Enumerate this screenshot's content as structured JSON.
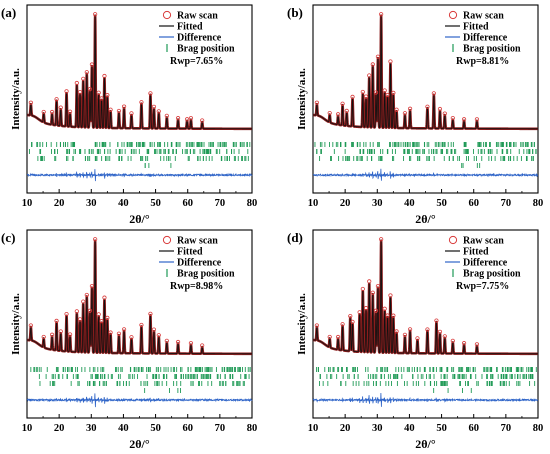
{
  "chart_data": [
    {
      "type": "line",
      "panel": "(a)",
      "xlabel": "2θ/°",
      "ylabel": "Intensity/a.u.",
      "xlim": [
        10,
        80
      ],
      "xticks": [
        "10",
        "20",
        "30",
        "40",
        "50",
        "60",
        "70",
        "80"
      ],
      "legend": {
        "placement": "top-right",
        "entries": [
          "Raw scan",
          "Fitted",
          "Difference",
          "Brag position"
        ],
        "rwp": "Rwp=7.65%"
      },
      "peaks": [
        {
          "x": 11.2,
          "h": 0.1
        },
        {
          "x": 15.2,
          "h": 0.08
        },
        {
          "x": 17.8,
          "h": 0.1
        },
        {
          "x": 19.2,
          "h": 0.22
        },
        {
          "x": 20.5,
          "h": 0.15
        },
        {
          "x": 22.3,
          "h": 0.3
        },
        {
          "x": 23.4,
          "h": 0.12
        },
        {
          "x": 25.5,
          "h": 0.38
        },
        {
          "x": 26.5,
          "h": 0.3
        },
        {
          "x": 27.5,
          "h": 0.42
        },
        {
          "x": 28.6,
          "h": 0.48
        },
        {
          "x": 29.6,
          "h": 0.33
        },
        {
          "x": 30.2,
          "h": 0.55
        },
        {
          "x": 31.2,
          "h": 1.0
        },
        {
          "x": 32.3,
          "h": 0.3
        },
        {
          "x": 33.2,
          "h": 0.25
        },
        {
          "x": 34.1,
          "h": 0.45
        },
        {
          "x": 35.0,
          "h": 0.28
        },
        {
          "x": 36.0,
          "h": 0.15
        },
        {
          "x": 38.6,
          "h": 0.14
        },
        {
          "x": 40.2,
          "h": 0.18
        },
        {
          "x": 42.5,
          "h": 0.12
        },
        {
          "x": 45.6,
          "h": 0.22
        },
        {
          "x": 48.4,
          "h": 0.3
        },
        {
          "x": 49.5,
          "h": 0.18
        },
        {
          "x": 51.0,
          "h": 0.14
        },
        {
          "x": 53.5,
          "h": 0.1
        },
        {
          "x": 57.0,
          "h": 0.08
        },
        {
          "x": 59.8,
          "h": 0.07
        },
        {
          "x": 61.0,
          "h": 0.08
        },
        {
          "x": 64.5,
          "h": 0.06
        }
      ]
    },
    {
      "type": "line",
      "panel": "(b)",
      "xlabel": "2θ/°",
      "ylabel": "Intensity/a.u.",
      "xlim": [
        10,
        80
      ],
      "xticks": [
        "10",
        "20",
        "30",
        "40",
        "50",
        "60",
        "70",
        "80"
      ],
      "legend": {
        "placement": "top-right",
        "entries": [
          "Raw scan",
          "Fitted",
          "Difference",
          "Brag position"
        ],
        "rwp": "Rwp=8.81%"
      },
      "peaks": [
        {
          "x": 11.2,
          "h": 0.1
        },
        {
          "x": 15.2,
          "h": 0.07
        },
        {
          "x": 17.8,
          "h": 0.08
        },
        {
          "x": 19.2,
          "h": 0.18
        },
        {
          "x": 20.5,
          "h": 0.12
        },
        {
          "x": 22.3,
          "h": 0.25
        },
        {
          "x": 25.5,
          "h": 0.3
        },
        {
          "x": 26.5,
          "h": 0.26
        },
        {
          "x": 27.5,
          "h": 0.45
        },
        {
          "x": 28.6,
          "h": 0.55
        },
        {
          "x": 29.6,
          "h": 0.3
        },
        {
          "x": 30.2,
          "h": 0.62
        },
        {
          "x": 31.2,
          "h": 1.0
        },
        {
          "x": 32.3,
          "h": 0.32
        },
        {
          "x": 33.2,
          "h": 0.28
        },
        {
          "x": 34.1,
          "h": 0.58
        },
        {
          "x": 35.0,
          "h": 0.3
        },
        {
          "x": 36.0,
          "h": 0.15
        },
        {
          "x": 38.6,
          "h": 0.12
        },
        {
          "x": 40.2,
          "h": 0.16
        },
        {
          "x": 45.6,
          "h": 0.18
        },
        {
          "x": 47.6,
          "h": 0.3
        },
        {
          "x": 49.5,
          "h": 0.16
        },
        {
          "x": 51.0,
          "h": 0.12
        },
        {
          "x": 53.5,
          "h": 0.08
        },
        {
          "x": 57.0,
          "h": 0.07
        },
        {
          "x": 61.0,
          "h": 0.07
        }
      ]
    },
    {
      "type": "line",
      "panel": "(c)",
      "xlabel": "2θ/°",
      "ylabel": "Intensity/a.u.",
      "xlim": [
        10,
        80
      ],
      "xticks": [
        "10",
        "20",
        "30",
        "40",
        "50",
        "60",
        "70",
        "80"
      ],
      "legend": {
        "placement": "top-right",
        "entries": [
          "Raw scan",
          "Fitted",
          "Difference",
          "Brag position"
        ],
        "rwp": "Rwp=8.98%"
      },
      "peaks": [
        {
          "x": 11.2,
          "h": 0.12
        },
        {
          "x": 15.2,
          "h": 0.08
        },
        {
          "x": 17.8,
          "h": 0.12
        },
        {
          "x": 19.2,
          "h": 0.25
        },
        {
          "x": 20.5,
          "h": 0.16
        },
        {
          "x": 22.3,
          "h": 0.32
        },
        {
          "x": 23.4,
          "h": 0.14
        },
        {
          "x": 25.5,
          "h": 0.35
        },
        {
          "x": 26.5,
          "h": 0.28
        },
        {
          "x": 27.5,
          "h": 0.44
        },
        {
          "x": 28.6,
          "h": 0.5
        },
        {
          "x": 29.6,
          "h": 0.36
        },
        {
          "x": 30.2,
          "h": 0.58
        },
        {
          "x": 31.2,
          "h": 1.0
        },
        {
          "x": 32.3,
          "h": 0.33
        },
        {
          "x": 33.2,
          "h": 0.27
        },
        {
          "x": 34.1,
          "h": 0.48
        },
        {
          "x": 35.0,
          "h": 0.3
        },
        {
          "x": 36.0,
          "h": 0.17
        },
        {
          "x": 38.6,
          "h": 0.16
        },
        {
          "x": 40.2,
          "h": 0.2
        },
        {
          "x": 42.5,
          "h": 0.13
        },
        {
          "x": 45.6,
          "h": 0.24
        },
        {
          "x": 48.4,
          "h": 0.34
        },
        {
          "x": 49.5,
          "h": 0.2
        },
        {
          "x": 51.0,
          "h": 0.15
        },
        {
          "x": 53.5,
          "h": 0.1
        },
        {
          "x": 57.0,
          "h": 0.09
        },
        {
          "x": 61.0,
          "h": 0.08
        },
        {
          "x": 64.5,
          "h": 0.06
        }
      ]
    },
    {
      "type": "line",
      "panel": "(d)",
      "xlabel": "2θ/°",
      "ylabel": "Intensity/a.u.",
      "xlim": [
        10,
        80
      ],
      "xticks": [
        "10",
        "20",
        "30",
        "40",
        "50",
        "60",
        "70",
        "80"
      ],
      "legend": {
        "placement": "top-right",
        "entries": [
          "Raw scan",
          "Fitted",
          "Difference",
          "Brag position"
        ],
        "rwp": "Rwp=7.75%"
      },
      "peaks": [
        {
          "x": 11.2,
          "h": 0.12
        },
        {
          "x": 15.2,
          "h": 0.08
        },
        {
          "x": 17.8,
          "h": 0.1
        },
        {
          "x": 19.2,
          "h": 0.22
        },
        {
          "x": 21.6,
          "h": 0.3
        },
        {
          "x": 22.3,
          "h": 0.25
        },
        {
          "x": 24.5,
          "h": 0.34
        },
        {
          "x": 25.5,
          "h": 0.55
        },
        {
          "x": 26.5,
          "h": 0.38
        },
        {
          "x": 27.5,
          "h": 0.62
        },
        {
          "x": 28.6,
          "h": 0.52
        },
        {
          "x": 29.6,
          "h": 0.36
        },
        {
          "x": 30.2,
          "h": 0.58
        },
        {
          "x": 31.2,
          "h": 1.0
        },
        {
          "x": 32.3,
          "h": 0.38
        },
        {
          "x": 33.2,
          "h": 0.32
        },
        {
          "x": 34.1,
          "h": 0.5
        },
        {
          "x": 35.0,
          "h": 0.32
        },
        {
          "x": 36.0,
          "h": 0.18
        },
        {
          "x": 38.6,
          "h": 0.15
        },
        {
          "x": 40.2,
          "h": 0.2
        },
        {
          "x": 42.5,
          "h": 0.12
        },
        {
          "x": 45.6,
          "h": 0.2
        },
        {
          "x": 48.4,
          "h": 0.28
        },
        {
          "x": 49.5,
          "h": 0.18
        },
        {
          "x": 51.0,
          "h": 0.14
        },
        {
          "x": 53.5,
          "h": 0.1
        },
        {
          "x": 57.0,
          "h": 0.08
        },
        {
          "x": 61.0,
          "h": 0.07
        }
      ]
    }
  ],
  "colors": {
    "raw": "#d93a3a",
    "fitted": "#111111",
    "difference": "#2e64c8",
    "brag": "#1f9a56",
    "axis": "#000000"
  }
}
